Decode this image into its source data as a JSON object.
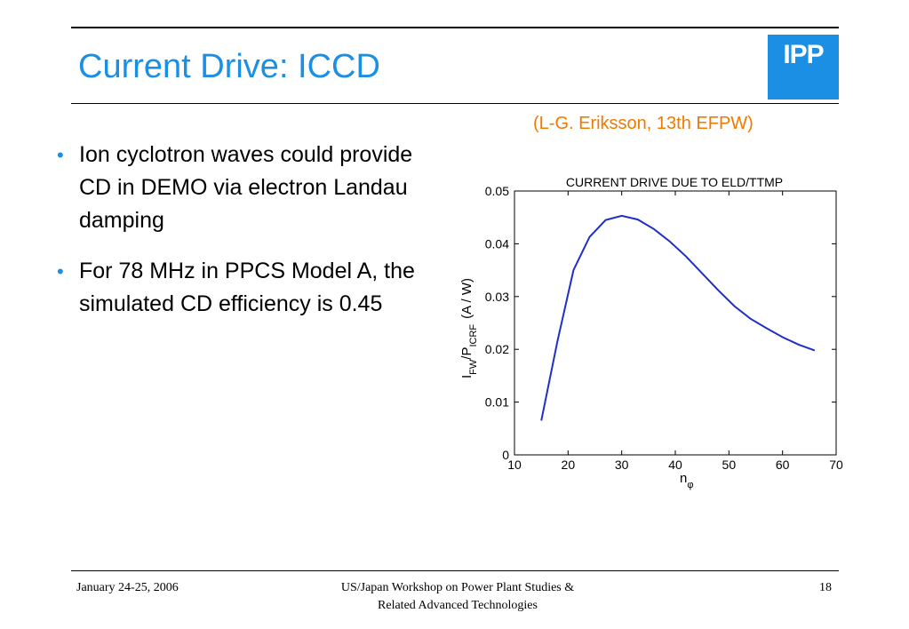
{
  "slide": {
    "title": "Current Drive: ICCD",
    "logo_text": "IPP",
    "citation": "(L-G. Eriksson, 13th EFPW)",
    "bullets": [
      "Ion cyclotron waves could provide CD in DEMO via electron Landau damping",
      "For 78 MHz in PPCS Model A, the simulated CD efficiency is 0.45"
    ],
    "bullet_marker": "•"
  },
  "footer": {
    "date": "January 24-25, 2006",
    "event_line1": "US/Japan Workshop on Power Plant Studies &",
    "event_line2": "Related Advanced Technologies",
    "page": "18"
  },
  "colors": {
    "accent": "#1a8fe3",
    "citation": "#f07a00",
    "curve": "#1f2fc8"
  },
  "chart_data": {
    "type": "line",
    "title": "CURRENT DRIVE DUE TO ELD/TTMP",
    "ylabel": {
      "base_I": "I",
      "sub_FW": "FW",
      "slash_P": "/P",
      "sub_ICRF": "ICRF",
      "unit": "(A / W)"
    },
    "xlabel": {
      "base": "n",
      "sub": "φ"
    },
    "xlim": [
      10,
      70
    ],
    "ylim": [
      0,
      0.05
    ],
    "xticks": [
      "10",
      "20",
      "30",
      "40",
      "50",
      "60",
      "70"
    ],
    "yticks": [
      "0",
      "0.01",
      "0.02",
      "0.03",
      "0.04",
      "0.05"
    ],
    "grid": false,
    "x": [
      15,
      18,
      21,
      24,
      27,
      30,
      33,
      36,
      39,
      42,
      45,
      48,
      51,
      54,
      57,
      60,
      63,
      66
    ],
    "y": [
      0.0065,
      0.0215,
      0.035,
      0.0413,
      0.0445,
      0.0453,
      0.0446,
      0.0428,
      0.0404,
      0.0376,
      0.0344,
      0.0312,
      0.0282,
      0.0258,
      0.024,
      0.0223,
      0.0209,
      0.0198
    ]
  }
}
